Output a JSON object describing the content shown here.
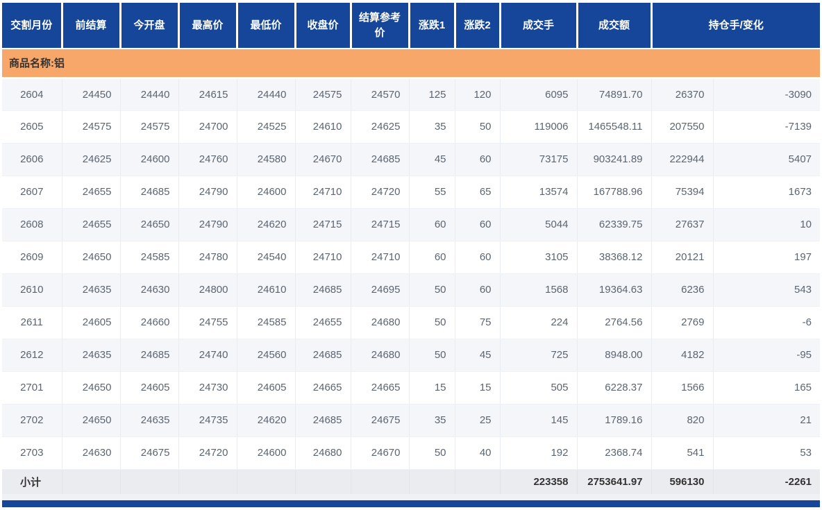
{
  "table": {
    "columns": [
      "交割月份",
      "前结算",
      "今开盘",
      "最高价",
      "最低价",
      "收盘价",
      "结算参考价",
      "涨跌1",
      "涨跌2",
      "成交手",
      "成交额",
      "持仓手/变化"
    ],
    "group_label": "商品名称:铝",
    "rows": [
      [
        "2604",
        "24450",
        "24440",
        "24615",
        "24440",
        "24575",
        "24570",
        "125",
        "120",
        "6095",
        "74891.70",
        "26370",
        "-3090"
      ],
      [
        "2605",
        "24575",
        "24575",
        "24700",
        "24525",
        "24610",
        "24625",
        "35",
        "50",
        "119006",
        "1465548.11",
        "207550",
        "-7139"
      ],
      [
        "2606",
        "24625",
        "24600",
        "24760",
        "24580",
        "24670",
        "24685",
        "45",
        "60",
        "73175",
        "903241.89",
        "222944",
        "5407"
      ],
      [
        "2607",
        "24655",
        "24685",
        "24790",
        "24600",
        "24710",
        "24720",
        "55",
        "65",
        "13574",
        "167788.96",
        "75394",
        "1673"
      ],
      [
        "2608",
        "24655",
        "24650",
        "24790",
        "24620",
        "24715",
        "24715",
        "60",
        "60",
        "5044",
        "62339.75",
        "27637",
        "10"
      ],
      [
        "2609",
        "24650",
        "24585",
        "24780",
        "24540",
        "24710",
        "24710",
        "60",
        "60",
        "3105",
        "38368.12",
        "20121",
        "197"
      ],
      [
        "2610",
        "24635",
        "24630",
        "24800",
        "24610",
        "24685",
        "24695",
        "50",
        "60",
        "1568",
        "19364.63",
        "6236",
        "543"
      ],
      [
        "2611",
        "24605",
        "24660",
        "24755",
        "24585",
        "24655",
        "24680",
        "50",
        "75",
        "224",
        "2764.56",
        "2769",
        "-6"
      ],
      [
        "2612",
        "24635",
        "24685",
        "24740",
        "24560",
        "24685",
        "24680",
        "50",
        "45",
        "725",
        "8948.00",
        "4182",
        "-95"
      ],
      [
        "2701",
        "24650",
        "24605",
        "24730",
        "24605",
        "24665",
        "24665",
        "15",
        "15",
        "505",
        "6228.37",
        "1566",
        "165"
      ],
      [
        "2702",
        "24650",
        "24635",
        "24735",
        "24620",
        "24685",
        "24675",
        "35",
        "25",
        "145",
        "1789.16",
        "820",
        "21"
      ],
      [
        "2703",
        "24630",
        "24675",
        "24720",
        "24600",
        "24680",
        "24670",
        "50",
        "40",
        "192",
        "2368.74",
        "541",
        "53"
      ]
    ],
    "subtotal": {
      "label": "小计",
      "volume": "223358",
      "turnover": "2753641.97",
      "open_interest": "596130",
      "oi_change": "-2261"
    }
  },
  "colors": {
    "header_bg": "#16469a",
    "group_bg": "#f8a76a",
    "alt_row_bg": "#f4f6fa",
    "subtotal_bg": "#ebecef",
    "data_text": "#5b6570",
    "dark_text": "#333333"
  }
}
